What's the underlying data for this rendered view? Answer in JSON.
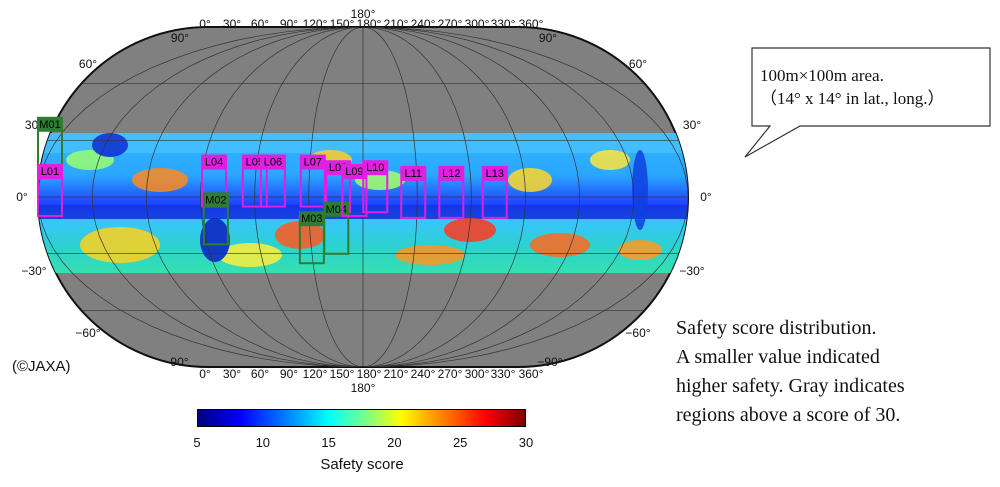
{
  "map": {
    "title": "",
    "lon_top_labels": [
      "0°",
      "30°",
      "60°",
      "90°",
      "120°",
      "150°",
      "180°",
      "210°",
      "240°",
      "270°",
      "300°",
      "330°",
      "360°"
    ],
    "lon_bottom_labels": [
      "0°",
      "30°",
      "60°",
      "90°",
      "120°",
      "150°",
      "180°",
      "210°",
      "240°",
      "270°",
      "300°",
      "330°",
      "360°"
    ],
    "lat_labels_left": [
      "60°",
      "30°",
      "0°",
      "−30°",
      "−60°"
    ],
    "lat_labels_right": [
      "60°",
      "30°",
      "0°",
      "−30°",
      "−60°"
    ],
    "pole_labels": {
      "top_lon": "180°",
      "bottom_lon": "180°",
      "edge_lon": "90°",
      "edge_lon_bottom": "−90°"
    },
    "background_color": "#808080",
    "sites": [
      {
        "id": "M01",
        "lon": -5,
        "lat": 25,
        "color": "#2e7d32"
      },
      {
        "id": "L01",
        "lon": -100,
        "lat": 0,
        "color": "#e020e0"
      },
      {
        "id": "L04",
        "lon": 10,
        "lat": 5,
        "color": "#e020e0"
      },
      {
        "id": "M02",
        "lon": 12,
        "lat": -15,
        "color": "#2e7d32"
      },
      {
        "id": "L05",
        "lon": 55,
        "lat": 5,
        "color": "#e020e0"
      },
      {
        "id": "L06",
        "lon": 75,
        "lat": 5,
        "color": "#e020e0"
      },
      {
        "id": "L07",
        "lon": 119,
        "lat": 5,
        "color": "#e020e0"
      },
      {
        "id": "M03",
        "lon": 118,
        "lat": -25,
        "color": "#2e7d32"
      },
      {
        "id": "L08",
        "lon": 147,
        "lat": 2,
        "color": "#e020e0"
      },
      {
        "id": "M04",
        "lon": 145,
        "lat": -20,
        "color": "#2e7d32"
      },
      {
        "id": "L09",
        "lon": 165,
        "lat": 0,
        "color": "#e020e0"
      },
      {
        "id": "L10",
        "lon": 188,
        "lat": 2,
        "color": "#e020e0"
      },
      {
        "id": "L11",
        "lon": 230,
        "lat": -1,
        "color": "#e020e0"
      },
      {
        "id": "L12",
        "lon": 272,
        "lat": -1,
        "color": "#e020e0"
      },
      {
        "id": "L13",
        "lon": 320,
        "lat": -1,
        "color": "#e020e0"
      }
    ]
  },
  "callout": {
    "line1": "100m×100m area.",
    "line2": "（14° x 14° in lat., long.）"
  },
  "caption": {
    "line1": "Safety score distribution.",
    "line2": "A smaller value indicated",
    "line3": "higher safety. Gray indicates",
    "line4": "regions above a score of 30."
  },
  "credit": "(©JAXA)",
  "colorbar": {
    "title": "Safety score",
    "ticks": [
      "5",
      "10",
      "15",
      "20",
      "25",
      "30"
    ],
    "min": 5,
    "max": 30
  }
}
